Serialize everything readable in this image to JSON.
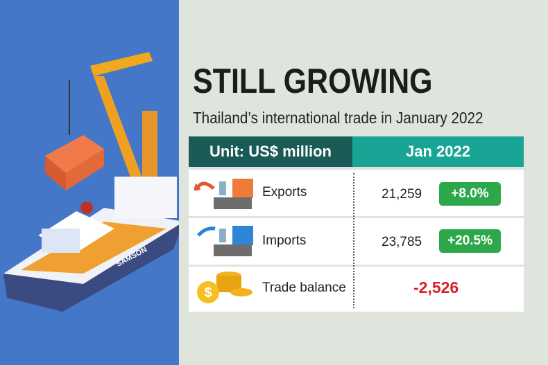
{
  "illustration": {
    "label": "SAMSON"
  },
  "header": {
    "title": "STILL GROWING",
    "subtitle": "Thailand’s international trade in January 2022"
  },
  "table": {
    "columns": [
      "Unit: US$ million",
      "Jan 2022"
    ],
    "rows": [
      [
        "Exports",
        "21,259",
        "+8.0%"
      ],
      [
        "Imports",
        "23,785",
        "+20.5%"
      ],
      [
        "Trade balance",
        "-2,526"
      ]
    ]
  }
}
